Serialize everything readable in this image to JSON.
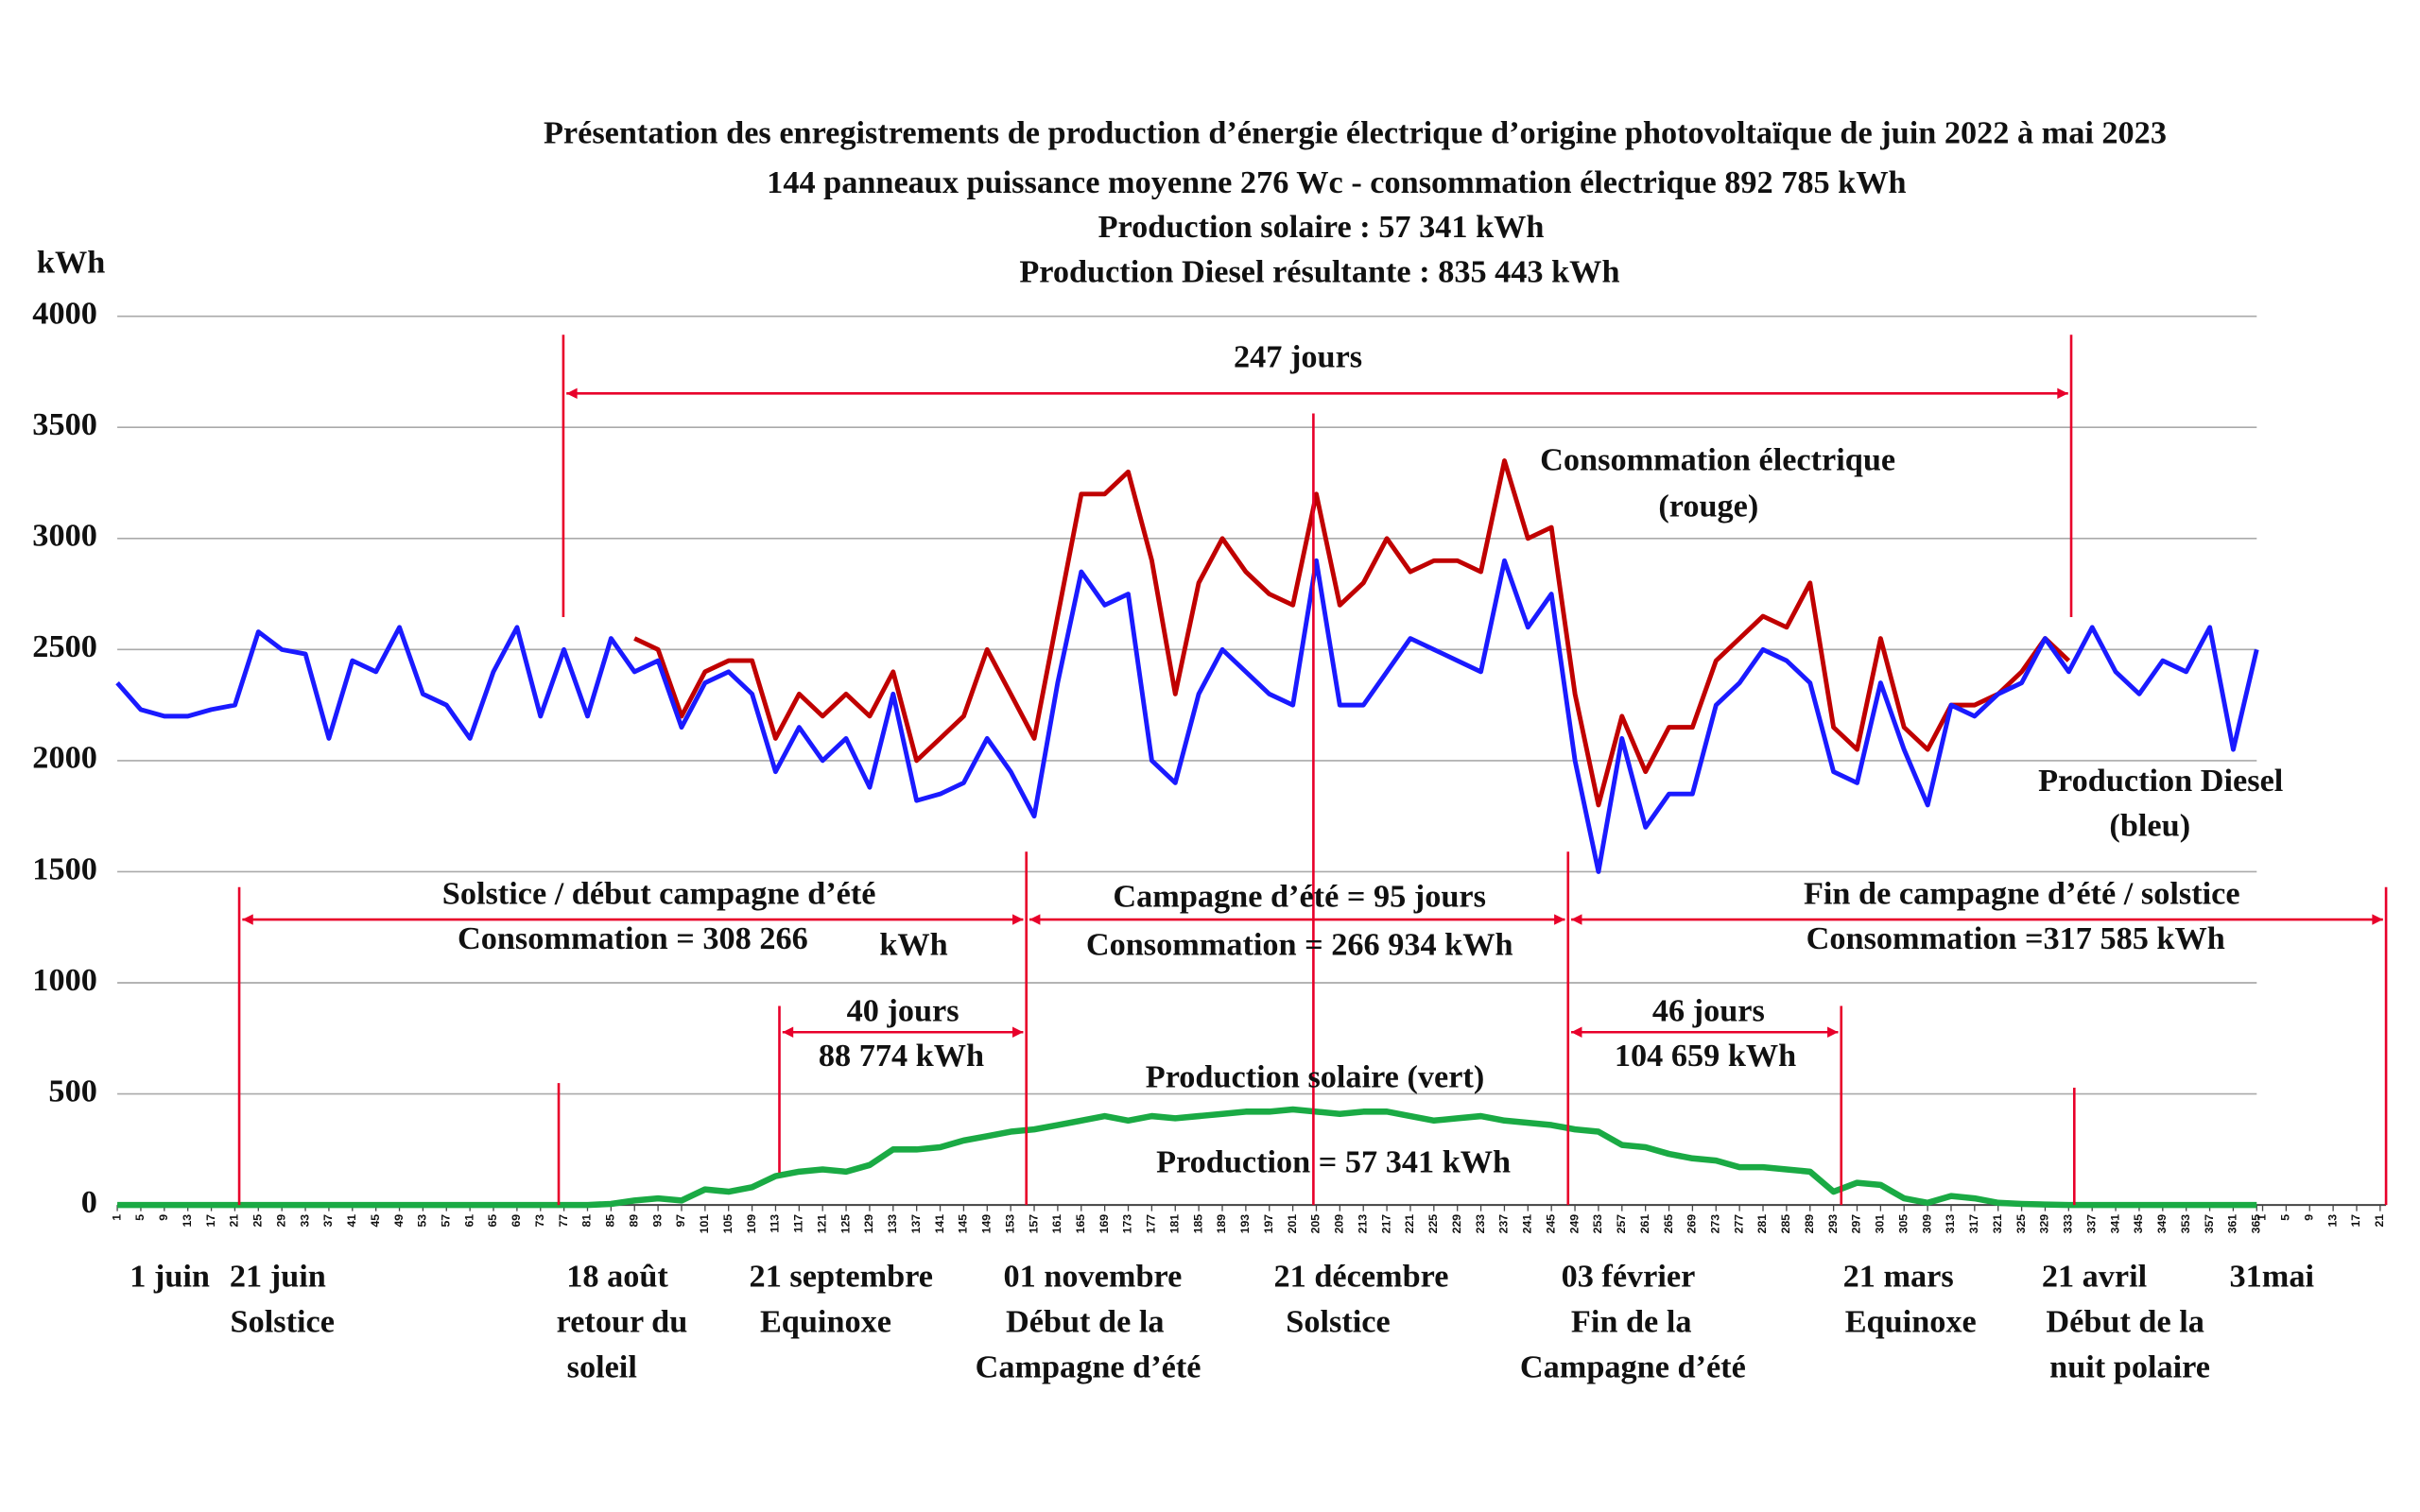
{
  "chart_data": {
    "type": "line",
    "title": "Présentation des enregistrements de production d’énergie électrique d’origine photovoltaïque de juin 2022 à mai 2023",
    "subtitles": [
      "144 panneaux puissance moyenne 276 Wc - consommation électrique 892 785 kWh",
      "Production solaire : 57 341 kWh",
      "Production Diesel résultante : 835 443 kWh"
    ],
    "y_label": "kWh",
    "xlim": [
      1,
      387
    ],
    "ylim": [
      0,
      4000
    ],
    "yticks": [
      0,
      500,
      1000,
      1500,
      2000,
      2500,
      3000,
      3500,
      4000
    ],
    "grid": true,
    "xticks": [
      1,
      5,
      9,
      13,
      17,
      21,
      25,
      29,
      33,
      37,
      41,
      45,
      49,
      53,
      57,
      61,
      65,
      69,
      73,
      77,
      81,
      85,
      89,
      93,
      97,
      101,
      105,
      109,
      113,
      117,
      121,
      125,
      129,
      133,
      137,
      141,
      145,
      149,
      153,
      157,
      161,
      165,
      169,
      173,
      177,
      181,
      185,
      189,
      193,
      197,
      201,
      205,
      209,
      213,
      217,
      221,
      225,
      229,
      233,
      237,
      241,
      245,
      249,
      253,
      257,
      261,
      265,
      269,
      273,
      277,
      281,
      285,
      289,
      293,
      297,
      301,
      305,
      309,
      313,
      317,
      321,
      325,
      329,
      333,
      337,
      341,
      345,
      349,
      353,
      357,
      361,
      365,
      {
        "value": 366,
        "label": "1"
      },
      {
        "value": 370,
        "label": "5"
      },
      {
        "value": 374,
        "label": "9"
      },
      {
        "value": 378,
        "label": "13"
      },
      {
        "value": 382,
        "label": "17"
      },
      {
        "value": 386,
        "label": "21"
      }
    ],
    "x": [
      1,
      5,
      9,
      13,
      17,
      21,
      25,
      29,
      33,
      37,
      41,
      45,
      49,
      53,
      57,
      61,
      65,
      69,
      73,
      77,
      81,
      85,
      89,
      93,
      97,
      101,
      105,
      109,
      113,
      117,
      121,
      125,
      129,
      133,
      137,
      141,
      145,
      149,
      153,
      157,
      161,
      165,
      169,
      173,
      177,
      181,
      185,
      189,
      193,
      197,
      201,
      205,
      209,
      213,
      217,
      221,
      225,
      229,
      233,
      237,
      241,
      245,
      249,
      253,
      257,
      261,
      265,
      269,
      273,
      277,
      281,
      285,
      289,
      293,
      297,
      301,
      305,
      309,
      313,
      317,
      321,
      325,
      329,
      333,
      337,
      341,
      345,
      349,
      353,
      357,
      361,
      365
    ],
    "series": [
      {
        "color": "#c00000",
        "values": [
          null,
          null,
          null,
          null,
          null,
          null,
          null,
          null,
          null,
          null,
          null,
          null,
          null,
          null,
          null,
          null,
          null,
          null,
          null,
          null,
          null,
          null,
          2550,
          2500,
          2200,
          2400,
          2450,
          2450,
          2100,
          2300,
          2200,
          2300,
          2200,
          2400,
          2000,
          2100,
          2200,
          2500,
          2300,
          2100,
          2650,
          3200,
          3200,
          3300,
          2900,
          2300,
          2800,
          3000,
          2850,
          2750,
          2700,
          3200,
          2700,
          2800,
          3000,
          2850,
          2900,
          2900,
          2850,
          3350,
          3000,
          3050,
          2300,
          1800,
          2200,
          1950,
          2150,
          2150,
          2450,
          2550,
          2650,
          2600,
          2800,
          2150,
          2050,
          2550,
          2150,
          2050,
          2250,
          2250,
          2300,
          2400,
          2550,
          2450,
          null,
          null,
          null,
          null,
          null,
          null,
          null,
          null
        ]
      },
      {
        "color": "#1a1aff",
        "values": [
          2350,
          2230,
          2200,
          2200,
          2230,
          2250,
          2580,
          2500,
          2480,
          2100,
          2450,
          2400,
          2600,
          2300,
          2250,
          2100,
          2400,
          2600,
          2200,
          2500,
          2200,
          2550,
          2400,
          2450,
          2150,
          2350,
          2400,
          2300,
          1950,
          2150,
          2000,
          2100,
          1880,
          2300,
          1820,
          1850,
          1900,
          2100,
          1950,
          1750,
          2350,
          2850,
          2700,
          2750,
          2000,
          1900,
          2300,
          2500,
          2400,
          2300,
          2250,
          2900,
          2250,
          2250,
          2400,
          2550,
          2500,
          2450,
          2400,
          2900,
          2600,
          2750,
          2000,
          1500,
          2100,
          1700,
          1850,
          1850,
          2250,
          2350,
          2500,
          2450,
          2350,
          1950,
          1900,
          2350,
          2050,
          1800,
          2250,
          2200,
          2300,
          2350,
          2550,
          2400,
          2600,
          2400,
          2300,
          2450,
          2400,
          2600,
          2050,
          2500
        ]
      },
      {
        "color": "#1aaa44",
        "values": [
          0,
          0,
          0,
          0,
          0,
          0,
          0,
          0,
          0,
          0,
          0,
          0,
          0,
          0,
          0,
          0,
          0,
          0,
          0,
          0,
          0,
          5,
          20,
          30,
          20,
          70,
          60,
          80,
          130,
          150,
          160,
          150,
          180,
          250,
          250,
          260,
          290,
          310,
          330,
          340,
          360,
          380,
          400,
          380,
          400,
          390,
          400,
          410,
          420,
          420,
          430,
          420,
          410,
          420,
          420,
          400,
          380,
          390,
          400,
          380,
          370,
          360,
          340,
          330,
          270,
          260,
          230,
          210,
          200,
          170,
          170,
          160,
          150,
          60,
          100,
          90,
          30,
          10,
          40,
          30,
          10,
          5,
          2,
          0,
          0,
          0,
          0,
          0,
          0,
          0,
          0,
          0
        ]
      }
    ],
    "annotations": [
      "247 jours",
      "Consommation électrique",
      "(rouge)",
      "Production Diesel",
      "(bleu)",
      "Solstice / début campagne d’été",
      "Consommation = 308 266",
      "kWh",
      "Campagne d’été = 95 jours",
      "Consommation = 266 934 kWh",
      "Fin de campagne d’été / solstice",
      "Consommation =317 585 kWh",
      "40 jours",
      "88 774 kWh",
      "46 jours",
      "104 659 kWh",
      "Production solaire (vert)",
      "Production = 57 341 kWh"
    ],
    "date_labels": [
      [
        "1 juin"
      ],
      [
        "21 juin",
        "Solstice"
      ],
      [
        "18 août",
        "retour du",
        "soleil"
      ],
      [
        "21 septembre",
        "Equinoxe"
      ],
      [
        "01 novembre",
        "Début de la",
        "Campagne d’été"
      ],
      [
        "21 décembre",
        "Solstice"
      ],
      [
        "03 février",
        "Fin de la",
        "Campagne d’été"
      ],
      [
        "21 mars",
        "Equinoxe"
      ],
      [
        "21 avril",
        "Début de la",
        "nuit polaire"
      ],
      [
        "31mai"
      ]
    ]
  }
}
